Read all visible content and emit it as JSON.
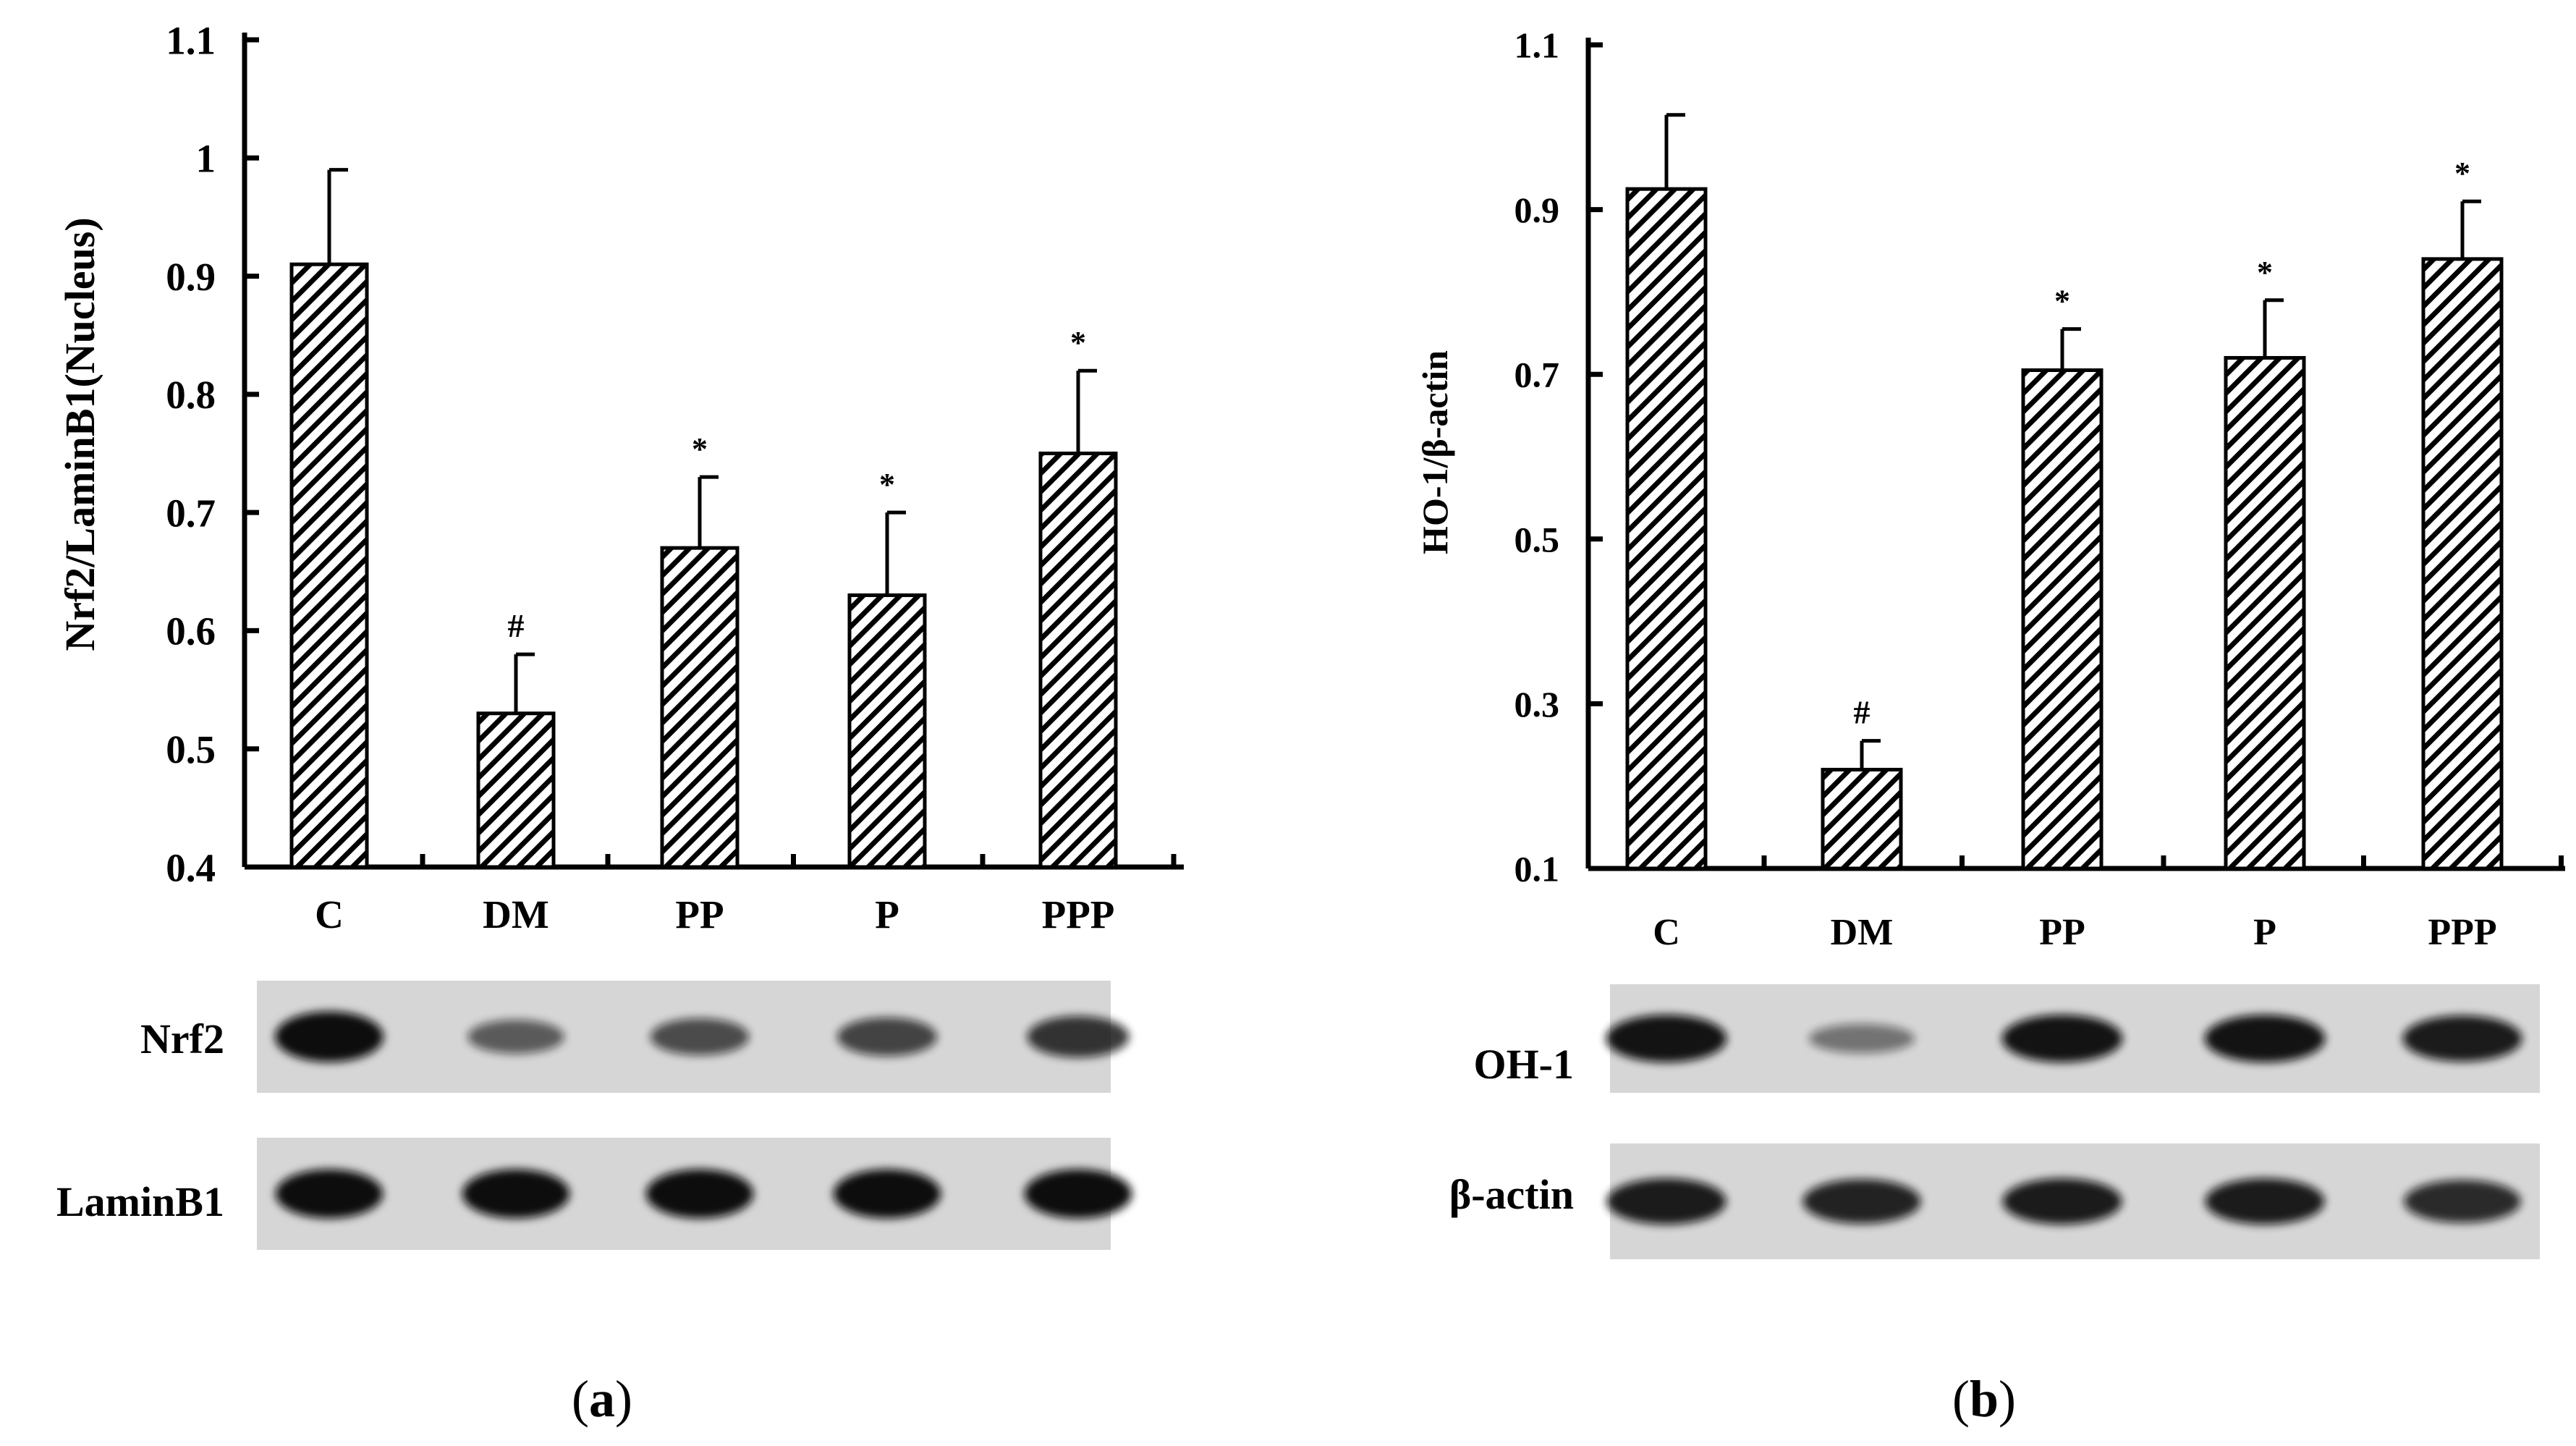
{
  "chart_data": [
    {
      "type": "bar",
      "panel_label": "a",
      "ylabel": "Nrf2/LaminB1(Nucleus)",
      "xlabel": "",
      "categories": [
        "C",
        "DM",
        "PP",
        "P",
        "PPP"
      ],
      "values": [
        0.91,
        0.53,
        0.67,
        0.63,
        0.75
      ],
      "error": [
        0.08,
        0.05,
        0.06,
        0.07,
        0.07
      ],
      "markers": [
        "",
        "#",
        "*",
        "*",
        "*"
      ],
      "ylim": [
        0.4,
        1.1
      ],
      "yticks": [
        "0.4",
        "0.5",
        "0.6",
        "0.7",
        "0.8",
        "0.9",
        "1",
        "1.1"
      ],
      "grid": false,
      "blot_labels": [
        "Nrf2",
        "LaminB1"
      ],
      "blot_intensity": [
        [
          1.0,
          0.45,
          0.55,
          0.6,
          0.7
        ],
        [
          0.95,
          0.95,
          0.95,
          0.95,
          0.95
        ]
      ]
    },
    {
      "type": "bar",
      "panel_label": "b",
      "ylabel": "HO-1/β-actin",
      "xlabel": "",
      "categories": [
        "C",
        "DM",
        "PP",
        "P",
        "PPP"
      ],
      "values": [
        0.925,
        0.22,
        0.705,
        0.72,
        0.84
      ],
      "error": [
        0.09,
        0.035,
        0.05,
        0.07,
        0.07
      ],
      "markers": [
        "",
        "#",
        "*",
        "*",
        "*"
      ],
      "ylim": [
        0.1,
        1.1
      ],
      "yticks": [
        "0.1",
        "0.3",
        "0.5",
        "0.7",
        "0.9",
        "1.1"
      ],
      "grid": false,
      "blot_labels": [
        "OH-1",
        "β-actin"
      ],
      "blot_intensity": [
        [
          0.9,
          0.3,
          0.9,
          0.9,
          0.85
        ],
        [
          0.85,
          0.8,
          0.85,
          0.85,
          0.75
        ]
      ]
    }
  ],
  "colors": {
    "bar_hatch": "#000000",
    "bar_fill": "#ffffff",
    "blot_bg": "#d6d6d6",
    "band": "#0a0a0a"
  }
}
